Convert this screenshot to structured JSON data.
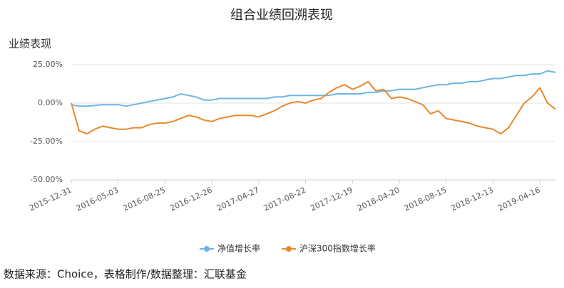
{
  "chart_data": {
    "type": "line",
    "title": "组合业绩回溯表现",
    "y_label": "业绩表现",
    "source": "数据来源：Choice，表格制作/数据整理：汇联基金",
    "categories": [
      "2015-12-31",
      null,
      null,
      null,
      null,
      null,
      "2016-05-03",
      null,
      null,
      null,
      null,
      null,
      "2016-08-25",
      null,
      null,
      null,
      null,
      null,
      "2016-12-26",
      null,
      null,
      null,
      null,
      null,
      "2017-04-27",
      null,
      null,
      null,
      null,
      null,
      "2017-08-22",
      null,
      null,
      null,
      null,
      null,
      "2017-12-19",
      null,
      null,
      null,
      null,
      null,
      "2018-04-20",
      null,
      null,
      null,
      null,
      null,
      "2018-08-15",
      null,
      null,
      null,
      null,
      null,
      "2018-12-13",
      null,
      null,
      null,
      null,
      null,
      "2019-04-16",
      null,
      null
    ],
    "series": [
      {
        "name": "净值增长率",
        "color": "#6cb4e4",
        "values": [
          -1,
          -2,
          -2,
          -1.5,
          -1,
          -1,
          -1,
          -2,
          -1,
          0,
          1,
          2,
          3,
          4,
          6,
          5,
          4,
          2,
          2,
          3,
          3,
          3,
          3,
          3,
          3,
          3,
          4,
          4,
          5,
          5,
          5,
          5,
          5,
          5,
          6,
          6,
          6,
          6,
          7,
          7,
          8,
          8,
          9,
          9,
          9,
          10,
          11,
          12,
          12,
          13,
          13,
          14,
          14,
          15,
          16,
          16,
          17,
          18,
          18,
          19,
          19,
          21,
          20
        ]
      },
      {
        "name": "沪深300指数增长率",
        "color": "#e8892b",
        "values": [
          0,
          -18,
          -20,
          -17,
          -15,
          -16,
          -17,
          -17,
          -16,
          -16,
          -14,
          -13,
          -13,
          -12,
          -10,
          -8,
          -9,
          -11,
          -12,
          -10,
          -9,
          -8,
          -8,
          -8,
          -9,
          -7,
          -5,
          -2,
          0,
          1,
          0,
          2,
          3,
          7,
          10,
          12,
          9,
          11,
          14,
          8,
          9,
          3,
          4,
          3,
          1,
          -1,
          -7,
          -5,
          -10,
          -11,
          -12,
          -13,
          -15,
          -16,
          -17,
          -20,
          -16,
          -8,
          0,
          4,
          10,
          0,
          -4
        ]
      }
    ],
    "ylim": [
      -50,
      25
    ],
    "yticks": [
      {
        "value": -50,
        "label": "-50.00%"
      },
      {
        "value": -25,
        "label": "-25.00%"
      },
      {
        "value": 0,
        "label": "0.00%"
      },
      {
        "value": 25,
        "label": "25.00%"
      }
    ],
    "grid": true
  }
}
